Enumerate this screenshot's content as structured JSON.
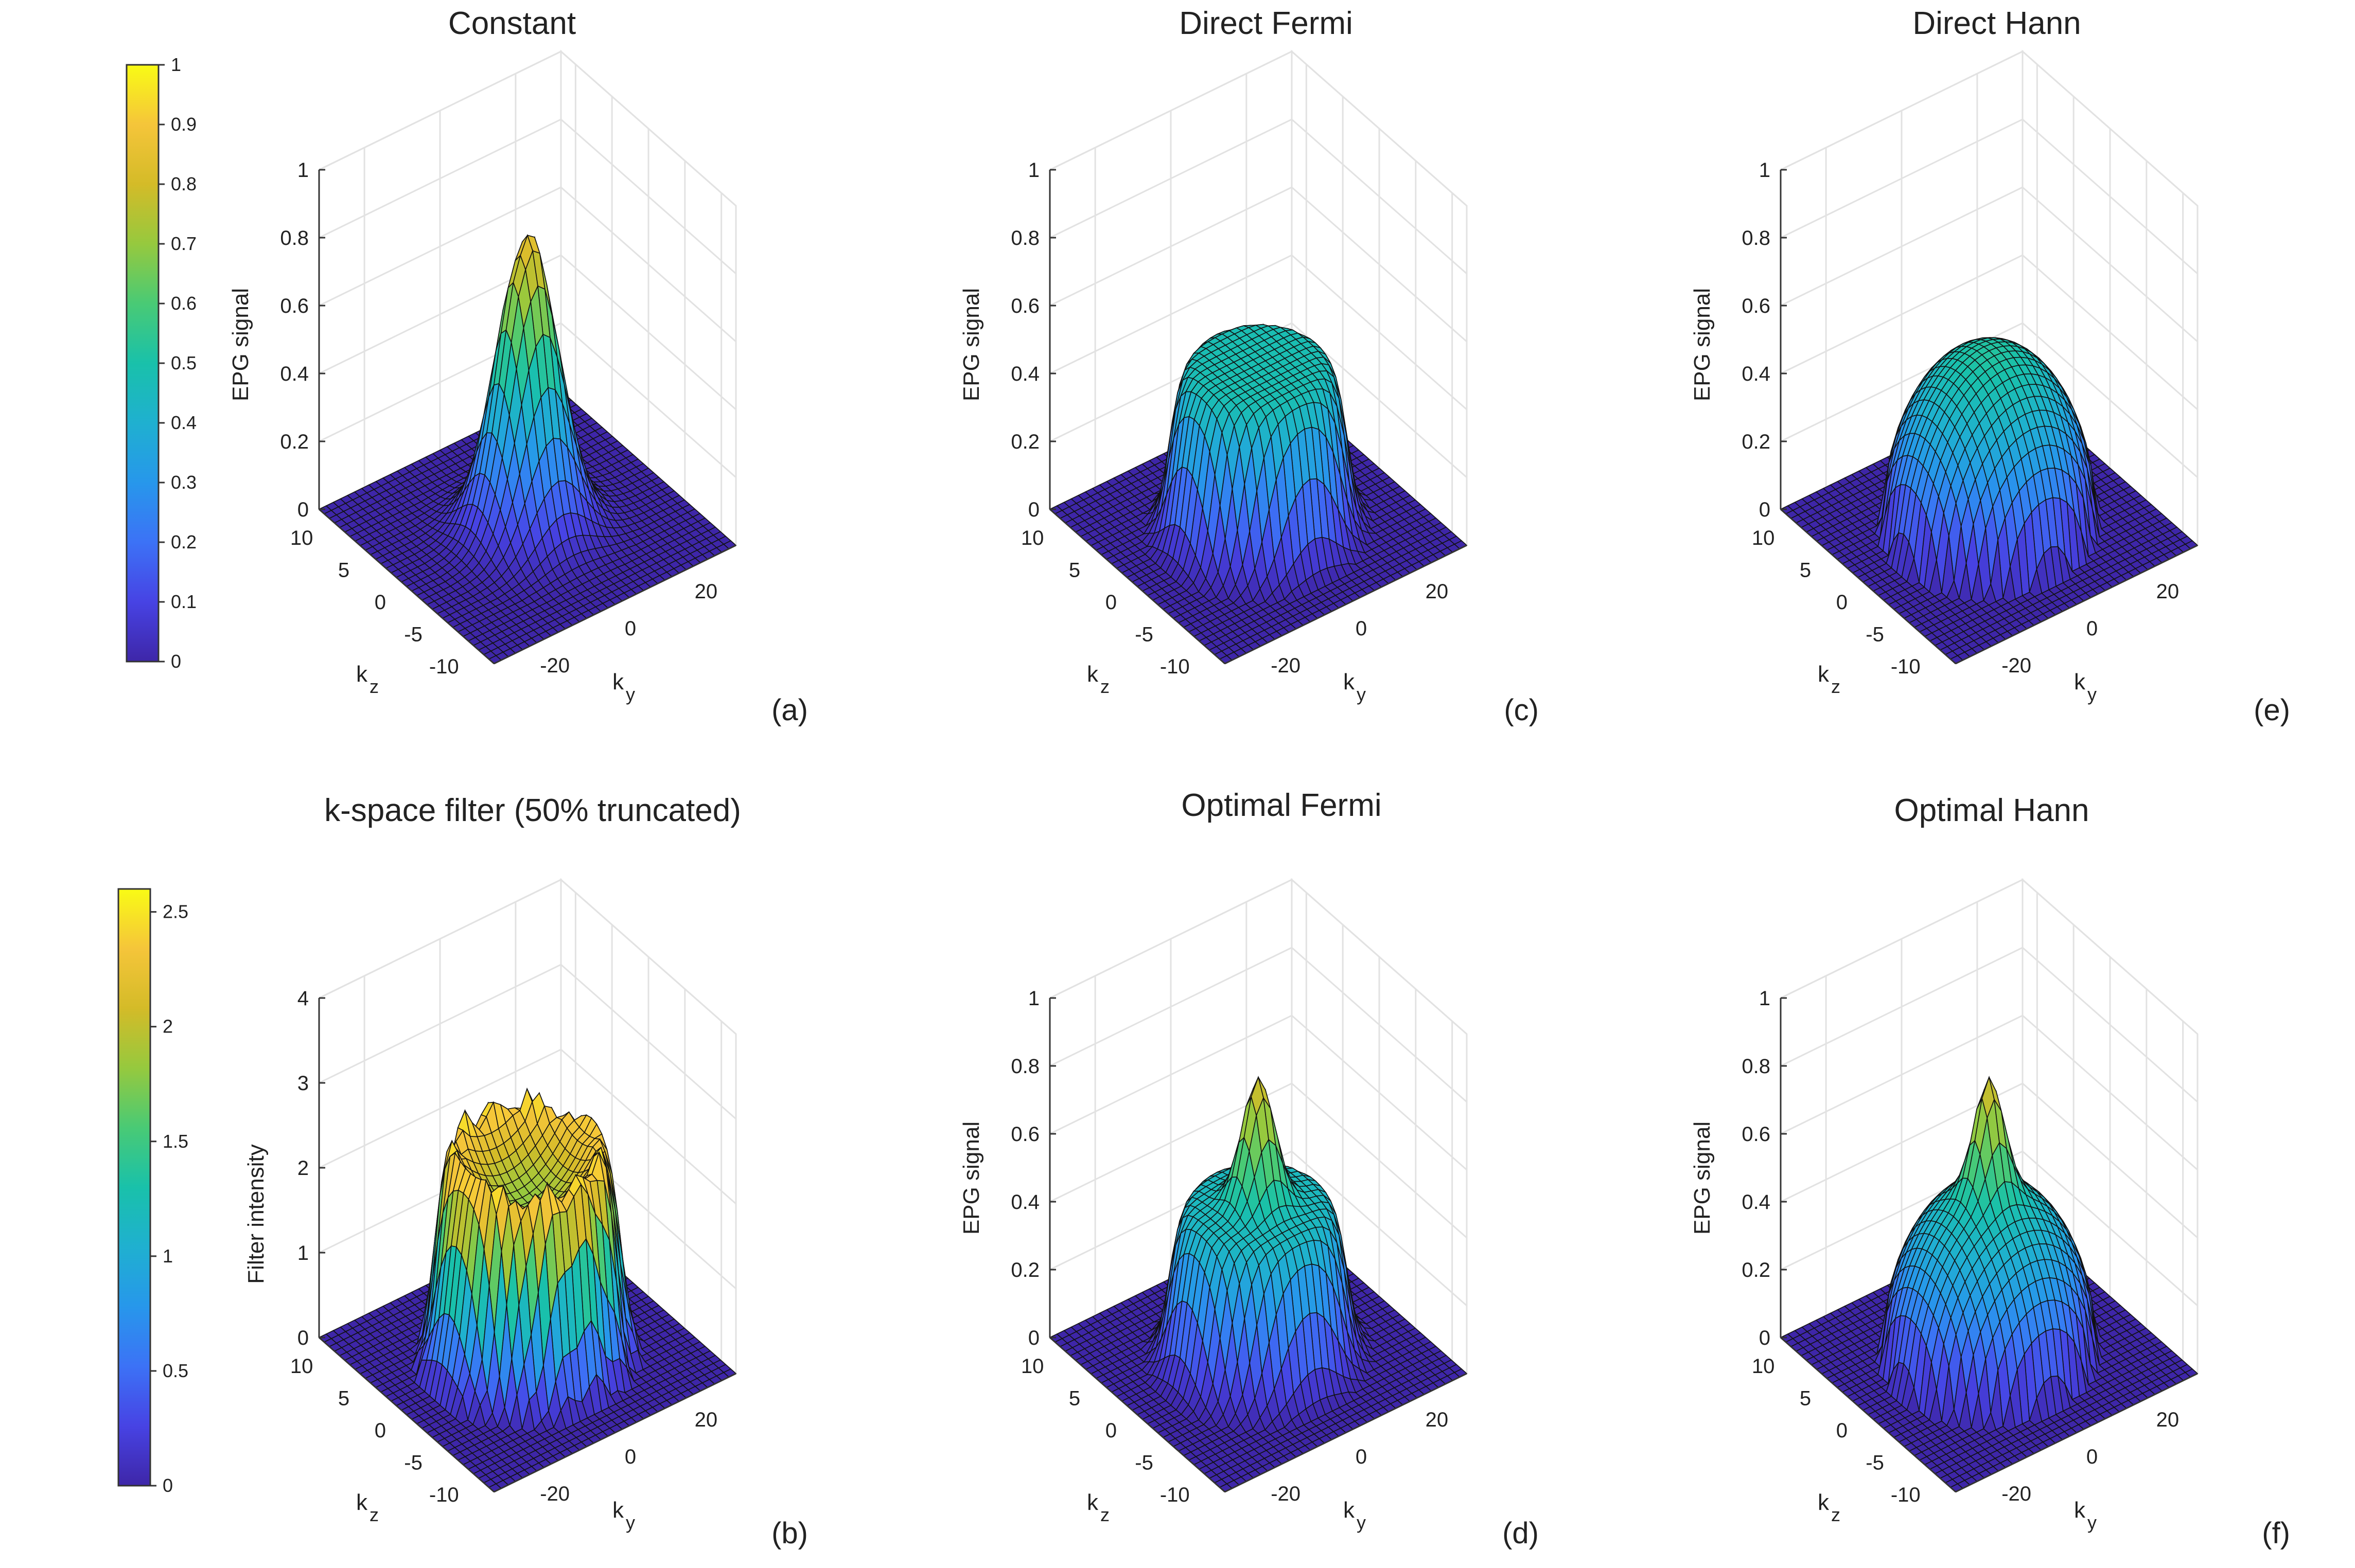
{
  "figure": {
    "colorbars": [
      {
        "ticks": [
          "0",
          "0.1",
          "0.2",
          "0.3",
          "0.4",
          "0.5",
          "0.6",
          "0.7",
          "0.8",
          "0.9",
          "1"
        ],
        "min": 0,
        "max": 1
      },
      {
        "ticks": [
          "0",
          "0.5",
          "1",
          "1.5",
          "2",
          "2.5"
        ],
        "min": 0,
        "max": 2.6
      }
    ],
    "colormap": [
      "#3e26a8",
      "#4743e4",
      "#3c72f6",
      "#2797eb",
      "#1fb0d0",
      "#19c1aa",
      "#49ca75",
      "#96c93e",
      "#d4bb28",
      "#f5c53a",
      "#f9fb15"
    ]
  },
  "chart_data": [
    {
      "type": "surface",
      "title": "Constant",
      "panel_label": "(a)",
      "zlabel": "EPG signal",
      "xlabel": "k",
      "xlabel_sub": "y",
      "ylabel": "k",
      "ylabel_sub": "z",
      "zlim": [
        0,
        1
      ],
      "z_ticks": [
        "0",
        "0.2",
        "0.4",
        "0.6",
        "0.8",
        "1"
      ],
      "ky_ticks": [
        "-20",
        "0",
        "20"
      ],
      "kz_ticks": [
        "-10",
        "-5",
        "0",
        "5",
        "10"
      ],
      "ky_range": [
        -32,
        32
      ],
      "kz_range": [
        -12,
        12
      ],
      "profile": "gaussian",
      "peak": 0.86,
      "support_radius": 0.75,
      "grid": true
    },
    {
      "type": "surface",
      "title": "k-space filter (50% truncated)",
      "panel_label": "(b)",
      "zlabel": "Filter intensity",
      "xlabel": "k",
      "xlabel_sub": "y",
      "ylabel": "k",
      "ylabel_sub": "z",
      "zlim": [
        0,
        4
      ],
      "z_ticks": [
        "0",
        "1",
        "2",
        "3",
        "4"
      ],
      "ky_ticks": [
        "-20",
        "0",
        "20"
      ],
      "kz_ticks": [
        "-10",
        "-5",
        "0",
        "5",
        "10"
      ],
      "ky_range": [
        -32,
        32
      ],
      "kz_range": [
        -12,
        12
      ],
      "profile": "bowl",
      "peak": 2.6,
      "center": 1.8,
      "support_radius": 0.75,
      "grid": true
    },
    {
      "type": "surface",
      "title": "Direct Fermi",
      "panel_label": "(c)",
      "zlabel": "EPG signal",
      "xlabel": "k",
      "xlabel_sub": "y",
      "ylabel": "k",
      "ylabel_sub": "z",
      "zlim": [
        0,
        1
      ],
      "z_ticks": [
        "0",
        "0.2",
        "0.4",
        "0.6",
        "0.8",
        "1"
      ],
      "ky_ticks": [
        "-20",
        "0",
        "20"
      ],
      "kz_ticks": [
        "-10",
        "-5",
        "0",
        "5",
        "10"
      ],
      "ky_range": [
        -32,
        32
      ],
      "kz_range": [
        -12,
        12
      ],
      "profile": "plateau",
      "peak": 0.48,
      "support_radius": 0.75,
      "grid": true
    },
    {
      "type": "surface",
      "title": "Optimal Fermi",
      "panel_label": "(d)",
      "zlabel": "EPG signal",
      "xlabel": "k",
      "xlabel_sub": "y",
      "ylabel": "k",
      "ylabel_sub": "z",
      "zlim": [
        0,
        1
      ],
      "z_ticks": [
        "0",
        "0.2",
        "0.4",
        "0.6",
        "0.8",
        "1"
      ],
      "ky_ticks": [
        "-20",
        "0",
        "20"
      ],
      "kz_ticks": [
        "-10",
        "-5",
        "0",
        "5",
        "10"
      ],
      "ky_range": [
        -32,
        32
      ],
      "kz_range": [
        -12,
        12
      ],
      "profile": "plateau_spike",
      "peak": 0.82,
      "base": 0.45,
      "support_radius": 0.75,
      "grid": true
    },
    {
      "type": "surface",
      "title": "Direct Hann",
      "panel_label": "(e)",
      "zlabel": "EPG signal",
      "xlabel": "k",
      "xlabel_sub": "y",
      "ylabel": "k",
      "ylabel_sub": "z",
      "zlim": [
        0,
        1
      ],
      "z_ticks": [
        "0",
        "0.2",
        "0.4",
        "0.6",
        "0.8",
        "1"
      ],
      "ky_ticks": [
        "-20",
        "0",
        "20"
      ],
      "kz_ticks": [
        "-10",
        "-5",
        "0",
        "5",
        "10"
      ],
      "ky_range": [
        -32,
        32
      ],
      "kz_range": [
        -12,
        12
      ],
      "profile": "dome",
      "peak": 0.52,
      "support_radius": 0.75,
      "grid": true
    },
    {
      "type": "surface",
      "title": "Optimal Hann",
      "panel_label": "(f)",
      "zlabel": "EPG signal",
      "xlabel": "k",
      "xlabel_sub": "y",
      "ylabel": "k",
      "ylabel_sub": "z",
      "zlim": [
        0,
        1
      ],
      "z_ticks": [
        "0",
        "0.2",
        "0.4",
        "0.6",
        "0.8",
        "1"
      ],
      "ky_ticks": [
        "-20",
        "0",
        "20"
      ],
      "kz_ticks": [
        "-10",
        "-5",
        "0",
        "5",
        "10"
      ],
      "ky_range": [
        -32,
        32
      ],
      "kz_range": [
        -12,
        12
      ],
      "profile": "dome_spike",
      "peak": 0.82,
      "base": 0.5,
      "support_radius": 0.75,
      "grid": true
    }
  ]
}
